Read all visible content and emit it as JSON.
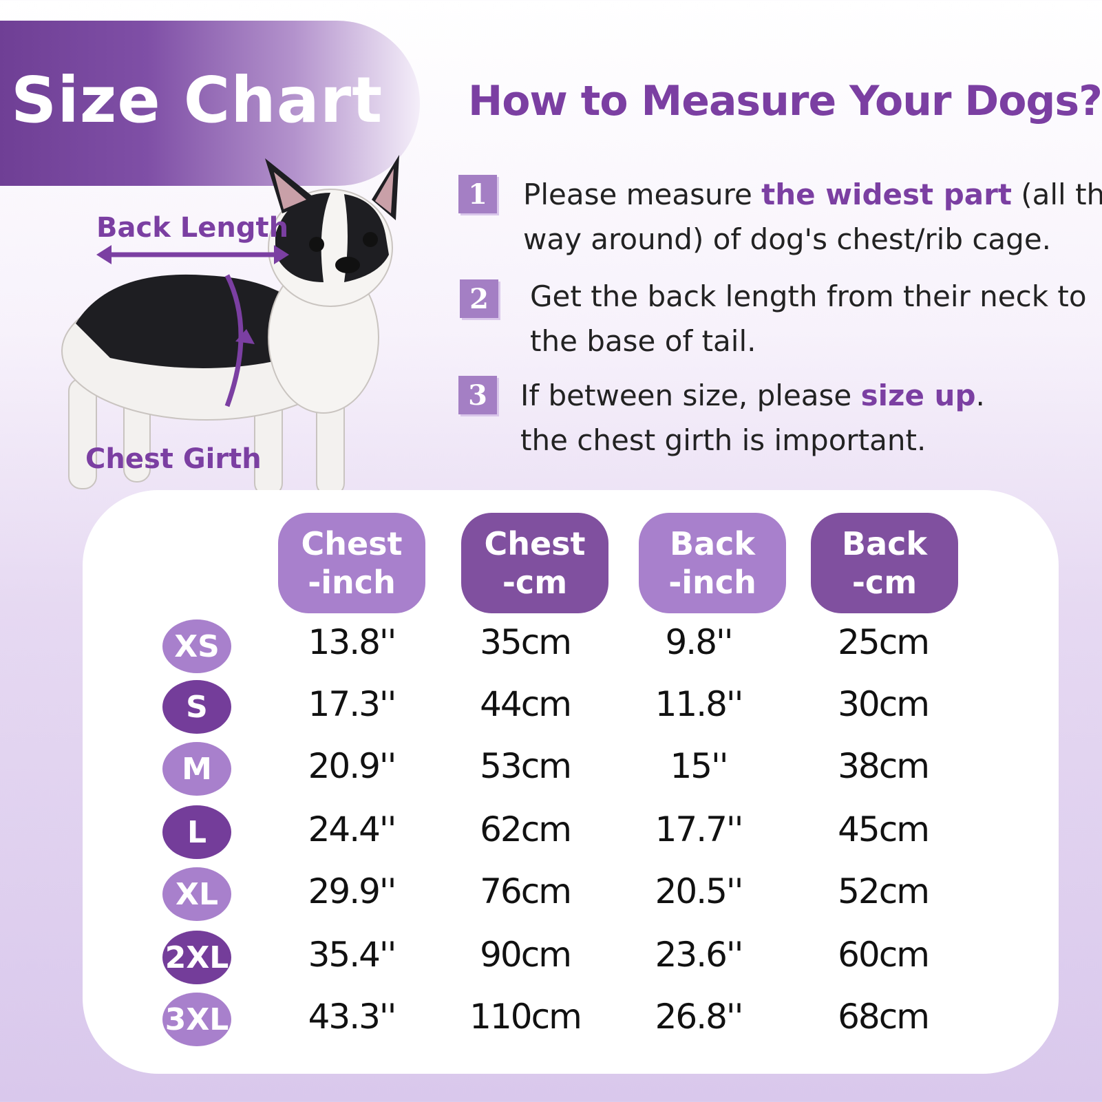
{
  "banner": {
    "title": "Size Chart"
  },
  "measure": {
    "title": "How to Measure Your Dogs?",
    "steps": [
      {
        "num": "1",
        "line1_pre": "Please measure ",
        "line1_hl": "the widest part",
        "line1_post": " (all the",
        "line2": "way around) of dog's chest/rib cage."
      },
      {
        "num": "2",
        "line1": "Get the back length from their neck to",
        "line2": "the base of tail."
      },
      {
        "num": "3",
        "line1_pre": "If between size, please ",
        "line1_hl": "size up",
        "line1_post": ".",
        "line2": "the chest girth is  important."
      }
    ]
  },
  "diagram": {
    "back_label": "Back Length",
    "chest_label": "Chest Girth"
  },
  "table": {
    "headers": [
      {
        "l1": "Chest",
        "l2": "-inch"
      },
      {
        "l1": "Chest",
        "l2": "-cm"
      },
      {
        "l1": "Back",
        "l2": "-inch"
      },
      {
        "l1": "Back",
        "l2": "-cm"
      }
    ],
    "rows": [
      {
        "size": "XS",
        "cells": [
          "13.8''",
          "35cm",
          "9.8''",
          "25cm"
        ]
      },
      {
        "size": "S",
        "cells": [
          "17.3''",
          "44cm",
          "11.8''",
          "30cm"
        ]
      },
      {
        "size": "M",
        "cells": [
          "20.9''",
          "53cm",
          "15''",
          "38cm"
        ]
      },
      {
        "size": "L",
        "cells": [
          "24.4''",
          "62cm",
          "17.7''",
          "45cm"
        ]
      },
      {
        "size": "XL",
        "cells": [
          "29.9''",
          "76cm",
          "20.5''",
          "52cm"
        ]
      },
      {
        "size": "2XL",
        "cells": [
          "35.4''",
          "90cm",
          "23.6''",
          "60cm"
        ]
      },
      {
        "size": "3XL",
        "cells": [
          "43.3''",
          "110cm",
          "26.8''",
          "68cm"
        ]
      }
    ]
  },
  "colors": {
    "accent": "#7b3fa2",
    "light": "#a880cc",
    "dark": "#743d9a"
  },
  "icons": [
    "dog-illustration",
    "back-length-arrow-icon",
    "chest-girth-arrow-icon"
  ]
}
